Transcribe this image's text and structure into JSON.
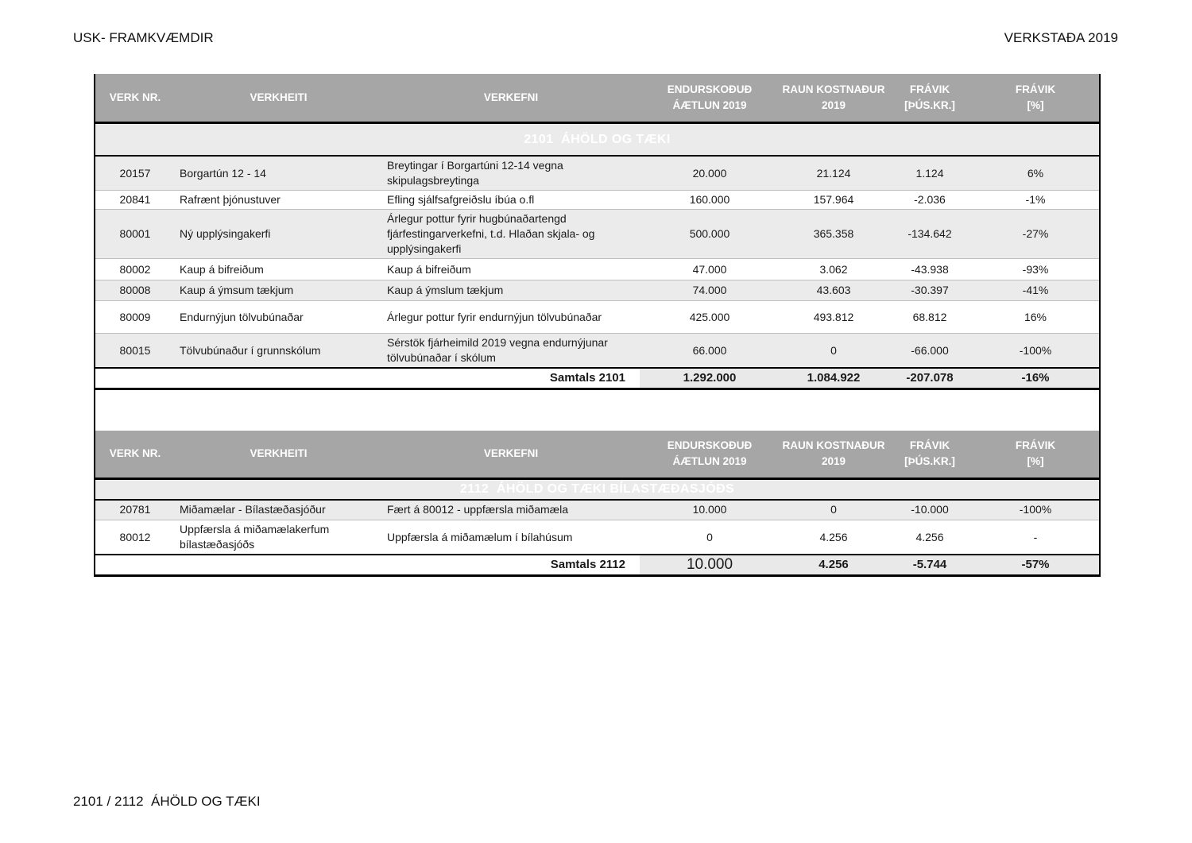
{
  "page_header": {
    "left": "USK- FRAMKVÆMDIR",
    "right": "VERKSTAÐA 2019"
  },
  "footer": {
    "text": "2101 / 2112  ÁHÖLD OG TÆKI"
  },
  "colors": {
    "title_band": "#7E93B7",
    "header_bg": "#A6A6A6",
    "row_alt_bg": "#EBEBEB",
    "totals_bg": "#E9E9E9"
  },
  "columns": [
    "VERK NR.",
    "VERKHEITI",
    "VERKEFNI",
    "ENDURSKOÐUÐ\nÁÆTLUN 2019",
    "RAUN KOSTNAÐUR\n2019",
    "FRÁVIK\n[ÞÚS.KR.]",
    "FRÁVIK\n[%]"
  ],
  "tables": [
    {
      "title": "2101  ÁHÖLD OG TÆKI",
      "rows": [
        {
          "verk_nr": "20157",
          "verkheiti": "Borgartún 12 - 14",
          "verkefni": "Breytingar í Borgartúni 12-14 vegna skipulagsbreytinga",
          "aetlun": "20.000",
          "raun": "21.124",
          "fravik_kr": "1.124",
          "fravik_pct": "6%"
        },
        {
          "verk_nr": "20841",
          "verkheiti": "Rafrænt þjónustuver",
          "verkefni": "Efling sjálfsafgreiðslu íbúa o.fl",
          "aetlun": "160.000",
          "raun": "157.964",
          "fravik_kr": "-2.036",
          "fravik_pct": "-1%"
        },
        {
          "verk_nr": "80001",
          "verkheiti": "Ný upplýsingakerfi",
          "verkefni": "Árlegur pottur fyrir hugbúnaðartengd fjárfestingarverkefni, t.d. Hlaðan skjala- og upplýsingakerfi",
          "aetlun": "500.000",
          "raun": "365.358",
          "fravik_kr": "-134.642",
          "fravik_pct": "-27%"
        },
        {
          "verk_nr": "80002",
          "verkheiti": "Kaup á bifreiðum",
          "verkefni": "Kaup á bifreiðum",
          "aetlun": "47.000",
          "raun": "3.062",
          "fravik_kr": "-43.938",
          "fravik_pct": "-93%"
        },
        {
          "verk_nr": "80008",
          "verkheiti": "Kaup á ýmsum tækjum",
          "verkefni": "Kaup á ýmslum tækjum",
          "aetlun": "74.000",
          "raun": "43.603",
          "fravik_kr": "-30.397",
          "fravik_pct": "-41%"
        },
        {
          "verk_nr": "80009",
          "verkheiti": "Endurnýjun tölvubúnaðar",
          "verkefni": "Árlegur pottur fyrir endurnýjun tölvubúnaðar",
          "aetlun": "425.000",
          "raun": "493.812",
          "fravik_kr": "68.812",
          "fravik_pct": "16%"
        },
        {
          "verk_nr": "80015",
          "verkheiti": "Tölvubúnaður í grunnskólum",
          "verkefni": "Sérstök fjárheimild 2019 vegna endurnýjunar tölvubúnaðar í skólum",
          "aetlun": "66.000",
          "raun": "0",
          "fravik_kr": "-66.000",
          "fravik_pct": "-100%"
        }
      ],
      "totals": {
        "label": "Samtals 2101",
        "aetlun": "1.292.000",
        "raun": "1.084.922",
        "fravik_kr": "-207.078",
        "fravik_pct": "-16%"
      }
    },
    {
      "title": "2112  ÁHÖLD OG TÆKI BÍLASTÆÐASJÓÐS",
      "rows": [
        {
          "verk_nr": "20781",
          "verkheiti": "Miðamælar - Bílastæðasjóður",
          "verkefni": "Fært á 80012 - uppfærsla miðamæla",
          "aetlun": "10.000",
          "raun": "0",
          "fravik_kr": "-10.000",
          "fravik_pct": "-100%"
        },
        {
          "verk_nr": "80012",
          "verkheiti": "Uppfærsla á miðamælakerfum bílastæðasjóðs",
          "verkefni": "Uppfærsla á miðamælum í bílahúsum",
          "aetlun": "0",
          "raun": "4.256",
          "fravik_kr": "4.256",
          "fravik_pct": "-"
        }
      ],
      "totals": {
        "label": "Samtals 2112",
        "aetlun": "10.000",
        "raun": "4.256",
        "fravik_kr": "-5.744",
        "fravik_pct": "-57%"
      }
    }
  ]
}
